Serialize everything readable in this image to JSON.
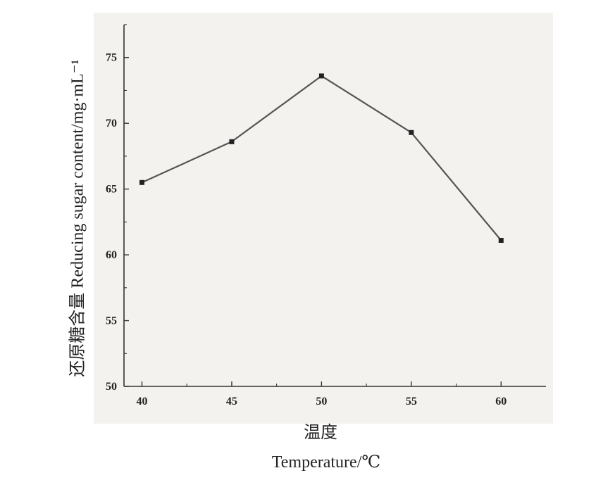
{
  "chart_data": {
    "type": "line",
    "xlabel_cn": "温度",
    "xlabel_en": "Temperature/℃",
    "ylabel": "还原糖含量  Reducing  sugar  content/mg·mL⁻¹",
    "x": [
      40,
      45,
      50,
      55,
      60
    ],
    "series": [
      {
        "values": [
          65.5,
          68.6,
          73.6,
          69.3,
          61.1
        ]
      }
    ],
    "xlim": [
      39,
      62.5
    ],
    "ylim": [
      50,
      77.5
    ],
    "xticks": [
      "40",
      "45",
      "50",
      "55",
      "60"
    ],
    "yticks": [
      "50",
      "55",
      "60",
      "65",
      "70",
      "75"
    ],
    "grid": false,
    "legend": false,
    "line_color": "#555555",
    "marker_color": "#222222",
    "plot_background": "#f3f2ef",
    "axis_color": "#333333"
  }
}
